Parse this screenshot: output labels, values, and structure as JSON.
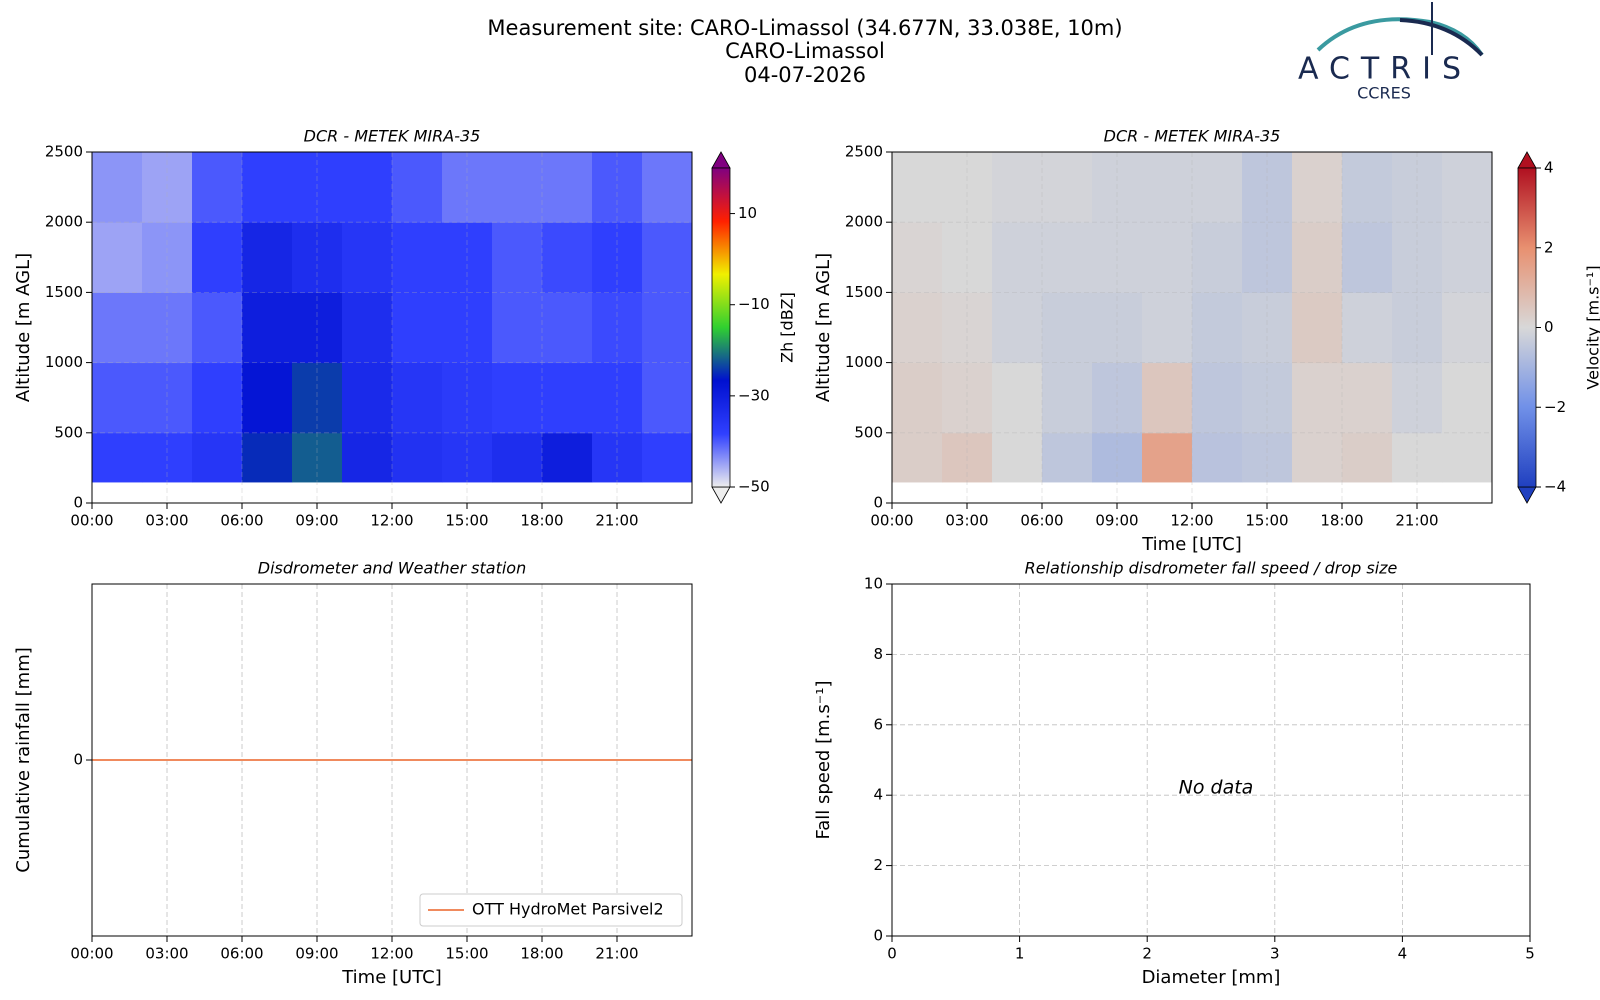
{
  "header": {
    "title_lines": [
      "Measurement site: CARO-Limassol (34.677N, 33.038E, 10m)",
      "CARO-Limassol",
      "04-07-2026"
    ],
    "logo": {
      "name": "ACTRIS",
      "sub": "CCRES"
    }
  },
  "chart_data": [
    {
      "type": "heatmap",
      "title": "DCR - METEK MIRA-35",
      "ylabel": "Altitude [m AGL]",
      "xlim": [
        0,
        24
      ],
      "xticks": [
        {
          "value": 0,
          "label": "00:00"
        },
        {
          "value": 3,
          "label": "03:00"
        },
        {
          "value": 6,
          "label": "06:00"
        },
        {
          "value": 9,
          "label": "09:00"
        },
        {
          "value": 12,
          "label": "12:00"
        },
        {
          "value": 15,
          "label": "15:00"
        },
        {
          "value": 18,
          "label": "18:00"
        },
        {
          "value": 21,
          "label": "21:00"
        }
      ],
      "ylim": [
        0,
        2500
      ],
      "yticks": [
        0,
        500,
        1000,
        1500,
        2000,
        2500
      ],
      "grid": true,
      "x_edges": [
        0,
        2,
        4,
        6,
        8,
        10,
        12,
        14,
        16,
        18,
        20,
        22,
        24
      ],
      "y_edges": [
        150,
        500,
        1000,
        1500,
        2000,
        2500
      ],
      "z": [
        [
          -38,
          -38,
          -36,
          -25,
          -22,
          -32,
          -35,
          -36,
          -34,
          -30,
          -36,
          -38
        ],
        [
          -40,
          -40,
          -38,
          -28,
          -24,
          -33,
          -36,
          -37,
          -38,
          -38,
          -38,
          -40
        ],
        [
          -42,
          -42,
          -40,
          -30,
          -30,
          -34,
          -38,
          -38,
          -40,
          -40,
          -39,
          -40
        ],
        [
          -45,
          -44,
          -38,
          -32,
          -34,
          -36,
          -38,
          -38,
          -40,
          -39,
          -38,
          -40
        ],
        [
          -44,
          -45,
          -40,
          -38,
          -38,
          -38,
          -40,
          -42,
          -42,
          -42,
          -40,
          -42
        ]
      ],
      "colorbar_label": "Zh [dBZ]",
      "clim": [
        -50,
        20
      ],
      "cticks": [
        {
          "value": -50,
          "label": "−50"
        },
        {
          "value": -30,
          "label": "−30"
        },
        {
          "value": -10,
          "label": "−10"
        },
        10
      ],
      "colormap": [
        "#eeeeee",
        "#3040ff",
        "#0010d0",
        "#30d030",
        "#f0f000",
        "#ff2000",
        "#800080"
      ]
    },
    {
      "type": "heatmap",
      "title": "DCR - METEK MIRA-35",
      "ylabel": "Altitude [m AGL]",
      "xlabel": "Time [UTC]",
      "xlim": [
        0,
        24
      ],
      "xticks": [
        {
          "value": 0,
          "label": "00:00"
        },
        {
          "value": 3,
          "label": "03:00"
        },
        {
          "value": 6,
          "label": "06:00"
        },
        {
          "value": 9,
          "label": "09:00"
        },
        {
          "value": 12,
          "label": "12:00"
        },
        {
          "value": 15,
          "label": "15:00"
        },
        {
          "value": 18,
          "label": "18:00"
        },
        {
          "value": 21,
          "label": "21:00"
        }
      ],
      "ylim": [
        0,
        2500
      ],
      "yticks": [
        0,
        500,
        1000,
        1500,
        2000,
        2500
      ],
      "grid": true,
      "x_edges": [
        0,
        2,
        4,
        6,
        8,
        10,
        12,
        14,
        16,
        18,
        20,
        22,
        24
      ],
      "y_edges": [
        150,
        500,
        1000,
        1500,
        2000,
        2500
      ],
      "z": [
        [
          0.3,
          0.5,
          0,
          -0.5,
          -0.8,
          1.5,
          -0.6,
          -0.5,
          0.2,
          0.3,
          0,
          0
        ],
        [
          0.3,
          0.2,
          0,
          -0.3,
          -0.5,
          0.5,
          -0.5,
          -0.4,
          0.2,
          0.2,
          -0.2,
          0
        ],
        [
          0.2,
          0.1,
          -0.2,
          -0.3,
          -0.3,
          -0.2,
          -0.4,
          -0.3,
          0.4,
          -0.2,
          -0.3,
          -0.1
        ],
        [
          0.1,
          0,
          -0.2,
          -0.2,
          -0.2,
          -0.2,
          -0.3,
          -0.5,
          0.3,
          -0.5,
          -0.3,
          -0.2
        ],
        [
          0,
          0,
          -0.1,
          -0.1,
          -0.2,
          -0.2,
          -0.2,
          -0.5,
          0.2,
          -0.4,
          -0.3,
          -0.2
        ]
      ],
      "colorbar_label": "Velocity [m.s⁻¹]",
      "clim": [
        -4,
        4
      ],
      "cticks": [
        {
          "value": -4,
          "label": "−4"
        },
        {
          "value": -2,
          "label": "−2"
        },
        0,
        2,
        4
      ],
      "colormap": [
        "#2040c0",
        "#7090e8",
        "#d8d8d8",
        "#e89070",
        "#b01020"
      ]
    },
    {
      "type": "line",
      "title": "Disdrometer and Weather station",
      "ylabel": "Cumulative rainfall [mm]",
      "xlabel": "Time [UTC]",
      "xlim": [
        0,
        24
      ],
      "xticks": [
        {
          "value": 0,
          "label": "00:00"
        },
        {
          "value": 3,
          "label": "03:00"
        },
        {
          "value": 6,
          "label": "06:00"
        },
        {
          "value": 9,
          "label": "09:00"
        },
        {
          "value": 12,
          "label": "12:00"
        },
        {
          "value": 15,
          "label": "15:00"
        },
        {
          "value": 18,
          "label": "18:00"
        },
        {
          "value": 21,
          "label": "21:00"
        }
      ],
      "ylim": [
        -0.055,
        0.055
      ],
      "yticks": [
        0
      ],
      "grid": true,
      "legend": "lower right",
      "series": [
        {
          "name": "OTT HydroMet Parsivel2",
          "color": "#f08a5d",
          "x": [
            0,
            24
          ],
          "values": [
            0,
            0
          ]
        }
      ]
    },
    {
      "type": "scatter",
      "title": "Relationship disdrometer fall speed / drop size",
      "ylabel": "Fall speed [m.s⁻¹]",
      "xlabel": "Diameter [mm]",
      "xlim": [
        0,
        5
      ],
      "xticks": [
        0,
        1,
        2,
        3,
        4,
        5
      ],
      "ylim": [
        0,
        10
      ],
      "yticks": [
        0,
        2,
        4,
        6,
        8,
        10
      ],
      "grid": true,
      "annotation": "No data",
      "x": [],
      "values": []
    }
  ]
}
